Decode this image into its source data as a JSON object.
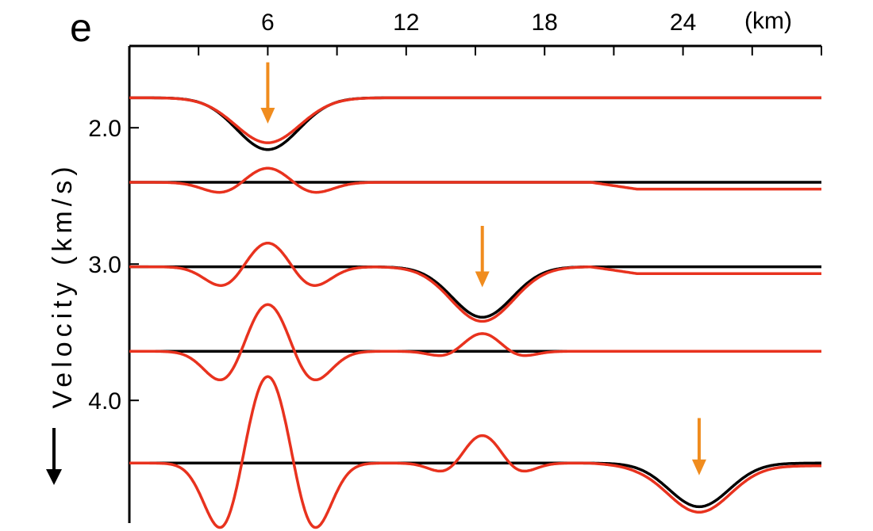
{
  "panel_label": "e",
  "chart_data": {
    "type": "line",
    "xlabel": "(km)",
    "ylabel": "Velocity (km/s)",
    "x_ticks": [
      6,
      12,
      18,
      24
    ],
    "x_tick_labels": [
      "6",
      "12",
      "18",
      "24"
    ],
    "xlim": [
      0,
      30
    ],
    "y_ticks": [
      2.0,
      3.0,
      4.0
    ],
    "y_tick_labels": [
      "2.0",
      "3.0",
      "4.0"
    ],
    "ylim": [
      1.4,
      4.9
    ],
    "y_direction": "down",
    "colors": {
      "true_model": "#000000",
      "inverted_model": "#e8321e",
      "arrow": "#f08c1e"
    },
    "series": [
      {
        "baseline": 1.78,
        "black": [
          {
            "x": 6.0,
            "amp": 0.38,
            "w": 1.35
          }
        ],
        "red": [
          {
            "x": 6.0,
            "amp": 0.33,
            "w": 1.4
          }
        ],
        "tail_offset": 0.0
      },
      {
        "baseline": 2.4,
        "black": [],
        "red": [
          {
            "x": 6.0,
            "amp": -0.13,
            "w": 1.1
          },
          {
            "x": 4.2,
            "amp": 0.1,
            "w": 0.9
          },
          {
            "x": 7.8,
            "amp": 0.1,
            "w": 0.9
          }
        ],
        "tail_offset": 0.05
      },
      {
        "baseline": 3.02,
        "black": [
          {
            "x": 15.3,
            "amp": 0.37,
            "w": 1.3
          }
        ],
        "red": [
          {
            "x": 6.0,
            "amp": -0.21,
            "w": 1.0
          },
          {
            "x": 4.2,
            "amp": 0.17,
            "w": 0.85
          },
          {
            "x": 7.8,
            "amp": 0.17,
            "w": 0.85
          },
          {
            "x": 15.3,
            "amp": 0.4,
            "w": 1.35
          }
        ],
        "tail_offset": 0.05
      },
      {
        "baseline": 3.64,
        "black": [],
        "red": [
          {
            "x": 6.0,
            "amp": -0.4,
            "w": 1.0
          },
          {
            "x": 4.2,
            "amp": 0.27,
            "w": 0.85
          },
          {
            "x": 7.8,
            "amp": 0.27,
            "w": 0.85
          },
          {
            "x": 15.3,
            "amp": -0.14,
            "w": 0.85
          },
          {
            "x": 13.8,
            "amp": 0.05,
            "w": 0.7
          },
          {
            "x": 16.8,
            "amp": 0.05,
            "w": 0.7
          }
        ],
        "tail_offset": 0.0
      },
      {
        "baseline": 4.46,
        "black": [
          {
            "x": 24.7,
            "amp": 0.32,
            "w": 1.3
          }
        ],
        "red": [
          {
            "x": 6.0,
            "amp": -0.7,
            "w": 0.95
          },
          {
            "x": 4.1,
            "amp": 0.55,
            "w": 0.8
          },
          {
            "x": 7.9,
            "amp": 0.55,
            "w": 0.8
          },
          {
            "x": 15.3,
            "amp": -0.22,
            "w": 0.85
          },
          {
            "x": 13.8,
            "amp": 0.09,
            "w": 0.7
          },
          {
            "x": 16.8,
            "amp": 0.09,
            "w": 0.7
          },
          {
            "x": 24.7,
            "amp": 0.34,
            "w": 1.35
          }
        ],
        "tail_offset": 0.02
      }
    ],
    "arrows": [
      {
        "x": 6.0,
        "y_start": 1.52,
        "y_end": 1.97
      },
      {
        "x": 15.3,
        "y_start": 2.72,
        "y_end": 3.17
      },
      {
        "x": 24.7,
        "y_start": 4.13,
        "y_end": 4.55
      }
    ]
  }
}
